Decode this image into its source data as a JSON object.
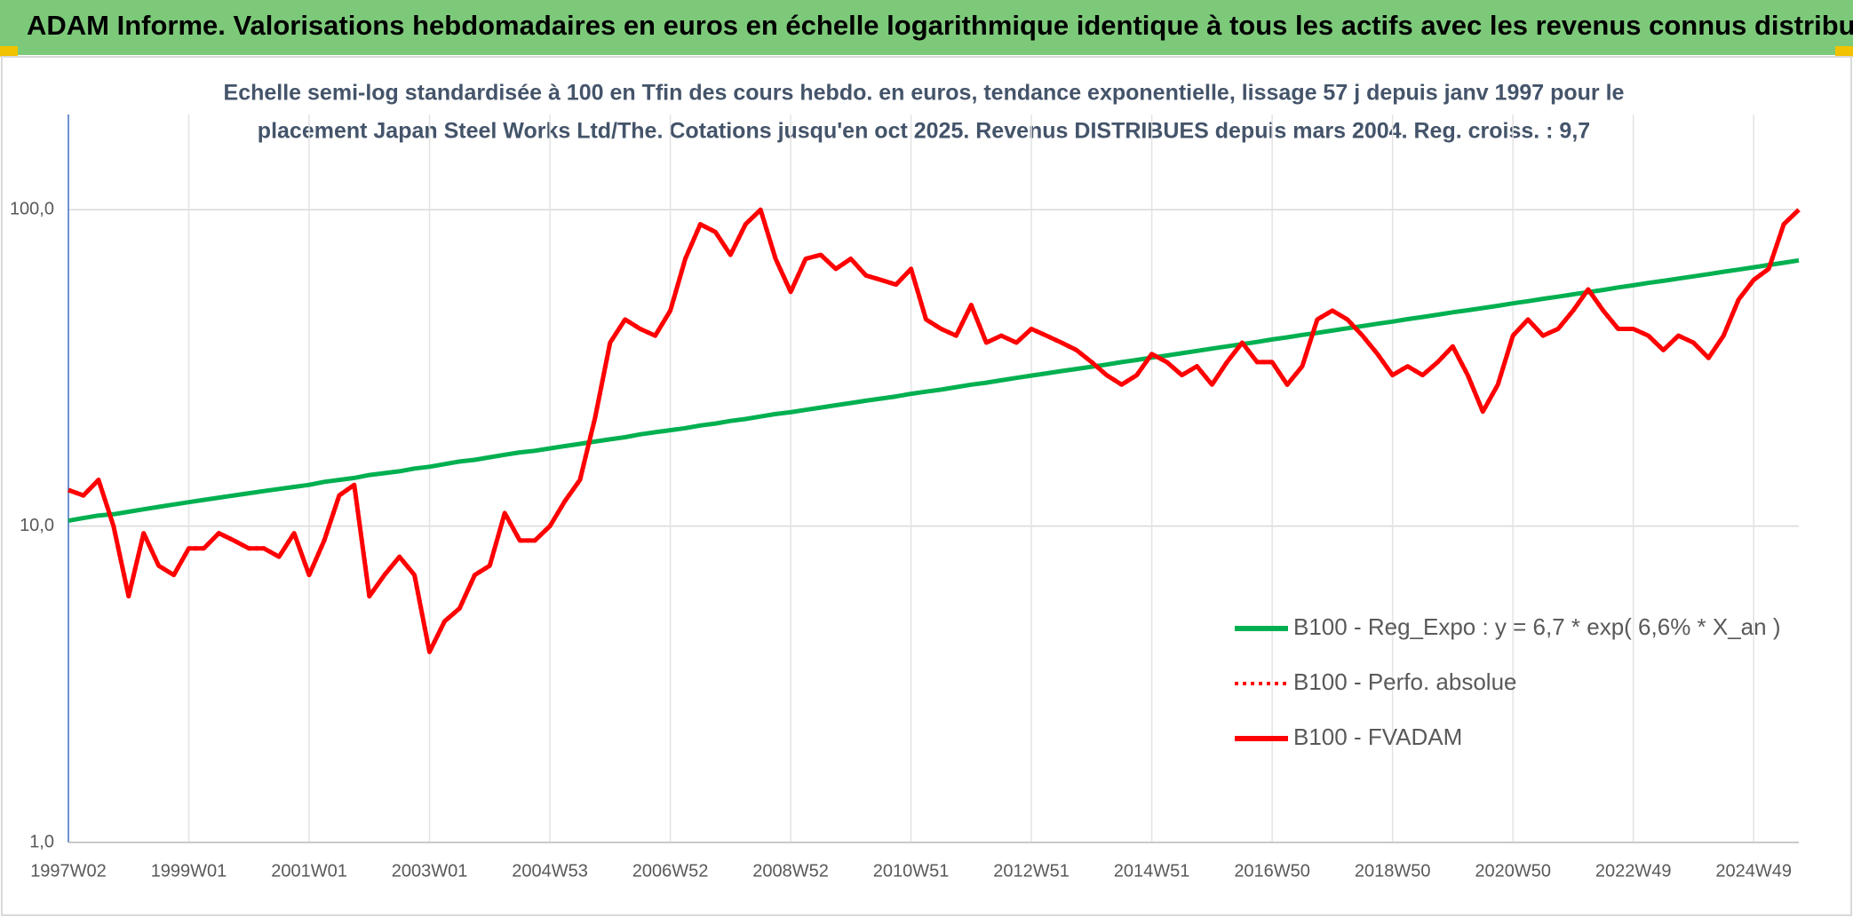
{
  "chart_data": {
    "type": "line",
    "title": "ADAM Informe. Valorisations hebdomadaires en euros en échelle logarithmique identique à tous les actifs avec les revenus connus distribués",
    "subtitle": [
      "Echelle semi-log standardisée à 100 en Tfin des cours hebdo. en euros, tendance exponentielle, lissage 57 j depuis janv 1997 pour le",
      "placement Japan Steel Works Ltd/The. Cotations jusqu'en oct 2025. Revenus DISTRIBUES depuis mars 2004. Reg. croiss. : 9,7"
    ],
    "log_scale": true,
    "ylim": [
      1,
      200
    ],
    "yticks": [
      {
        "value": 1,
        "label": "1,0"
      },
      {
        "value": 10,
        "label": "10,0"
      },
      {
        "value": 100,
        "label": "100,0"
      }
    ],
    "grid": true,
    "legend": "right",
    "categories": [
      "1997W02",
      null,
      null,
      null,
      null,
      null,
      null,
      null,
      "1999W01",
      null,
      null,
      null,
      null,
      null,
      null,
      null,
      "2001W01",
      null,
      null,
      null,
      null,
      null,
      null,
      null,
      "2003W01",
      null,
      null,
      null,
      null,
      null,
      null,
      null,
      "2004W53",
      null,
      null,
      null,
      null,
      null,
      null,
      null,
      "2006W52",
      null,
      null,
      null,
      null,
      null,
      null,
      null,
      "2008W52",
      null,
      null,
      null,
      null,
      null,
      null,
      null,
      "2010W51",
      null,
      null,
      null,
      null,
      null,
      null,
      null,
      "2012W51",
      null,
      null,
      null,
      null,
      null,
      null,
      null,
      "2014W51",
      null,
      null,
      null,
      null,
      null,
      null,
      null,
      "2016W50",
      null,
      null,
      null,
      null,
      null,
      null,
      null,
      "2018W50",
      null,
      null,
      null,
      null,
      null,
      null,
      null,
      "2020W50",
      null,
      null,
      null,
      null,
      null,
      null,
      null,
      "2022W49",
      null,
      null,
      null,
      null,
      null,
      null,
      null,
      "2024W49",
      null,
      null,
      null
    ],
    "series": [
      {
        "name": "B100 - Reg_Expo : y = 6,7 * exp( 6,6% *  X_an )",
        "color": "#00b050",
        "style": "solid",
        "values": [
          10.4,
          10.6,
          10.8,
          10.9,
          11.1,
          11.3,
          11.5,
          11.7,
          11.9,
          12.1,
          12.3,
          12.5,
          12.7,
          12.9,
          13.1,
          13.3,
          13.5,
          13.8,
          14.0,
          14.2,
          14.5,
          14.7,
          14.9,
          15.2,
          15.4,
          15.7,
          16.0,
          16.2,
          16.5,
          16.8,
          17.1,
          17.3,
          17.6,
          17.9,
          18.2,
          18.5,
          18.8,
          19.1,
          19.5,
          19.8,
          20.1,
          20.4,
          20.8,
          21.1,
          21.5,
          21.8,
          22.2,
          22.6,
          22.9,
          23.3,
          23.7,
          24.1,
          24.5,
          24.9,
          25.3,
          25.7,
          26.2,
          26.6,
          27.0,
          27.5,
          28.0,
          28.4,
          28.9,
          29.4,
          29.9,
          30.4,
          30.9,
          31.4,
          31.9,
          32.4,
          33.0,
          33.5,
          34.1,
          34.6,
          35.2,
          35.8,
          36.4,
          37.0,
          37.6,
          38.2,
          38.9,
          39.5,
          40.2,
          40.8,
          41.5,
          42.2,
          42.9,
          43.6,
          44.3,
          45.1,
          45.8,
          46.6,
          47.4,
          48.1,
          48.9,
          49.7,
          50.6,
          51.4,
          52.3,
          53.1,
          54.0,
          54.9,
          55.8,
          56.8,
          57.7,
          58.7,
          59.6,
          60.6,
          61.6,
          62.6,
          63.7,
          64.7,
          65.8,
          66.9,
          68.0,
          69.2
        ]
      },
      {
        "name": "B100 - Perfo. absolue",
        "color": "#ff0000",
        "style": "dotted",
        "values": [
          13,
          12.5,
          14,
          10,
          6,
          9.5,
          7.5,
          7,
          8.5,
          8.5,
          9.5,
          9,
          8.5,
          8.5,
          8,
          9.5,
          7,
          9,
          12.5,
          13.5,
          6,
          7,
          8,
          7,
          4,
          5,
          5.5,
          7,
          7.5,
          11,
          9,
          9,
          10,
          12,
          14,
          22,
          38,
          45,
          42,
          40,
          48,
          70,
          90,
          85,
          72,
          90,
          100,
          70,
          55,
          70,
          72,
          65,
          70,
          62,
          60,
          58,
          65,
          45,
          42,
          40,
          50,
          38,
          40,
          38,
          42,
          40,
          38,
          36,
          33,
          30,
          28,
          30,
          35,
          33,
          30,
          32,
          28,
          33,
          38,
          33,
          33,
          28,
          32,
          45,
          48,
          45,
          40,
          35,
          30,
          32,
          30,
          33,
          37,
          30,
          23,
          28,
          40,
          45,
          40,
          42,
          48,
          56,
          48,
          42,
          42,
          40,
          36,
          40,
          38,
          34,
          40,
          52,
          60,
          65,
          90,
          100
        ]
      },
      {
        "name": "B100 - FVADAM",
        "color": "#ff0000",
        "style": "solid",
        "values": [
          13,
          12.5,
          14,
          10,
          6,
          9.5,
          7.5,
          7,
          8.5,
          8.5,
          9.5,
          9,
          8.5,
          8.5,
          8,
          9.5,
          7,
          9,
          12.5,
          13.5,
          6,
          7,
          8,
          7,
          4,
          5,
          5.5,
          7,
          7.5,
          11,
          9,
          9,
          10,
          12,
          14,
          22,
          38,
          45,
          42,
          40,
          48,
          70,
          90,
          85,
          72,
          90,
          100,
          70,
          55,
          70,
          72,
          65,
          70,
          62,
          60,
          58,
          65,
          45,
          42,
          40,
          50,
          38,
          40,
          38,
          42,
          40,
          38,
          36,
          33,
          30,
          28,
          30,
          35,
          33,
          30,
          32,
          28,
          33,
          38,
          33,
          33,
          28,
          32,
          45,
          48,
          45,
          40,
          35,
          30,
          32,
          30,
          33,
          37,
          30,
          23,
          28,
          40,
          45,
          40,
          42,
          48,
          56,
          48,
          42,
          42,
          40,
          36,
          40,
          38,
          34,
          40,
          52,
          60,
          65,
          90,
          100
        ]
      }
    ]
  }
}
